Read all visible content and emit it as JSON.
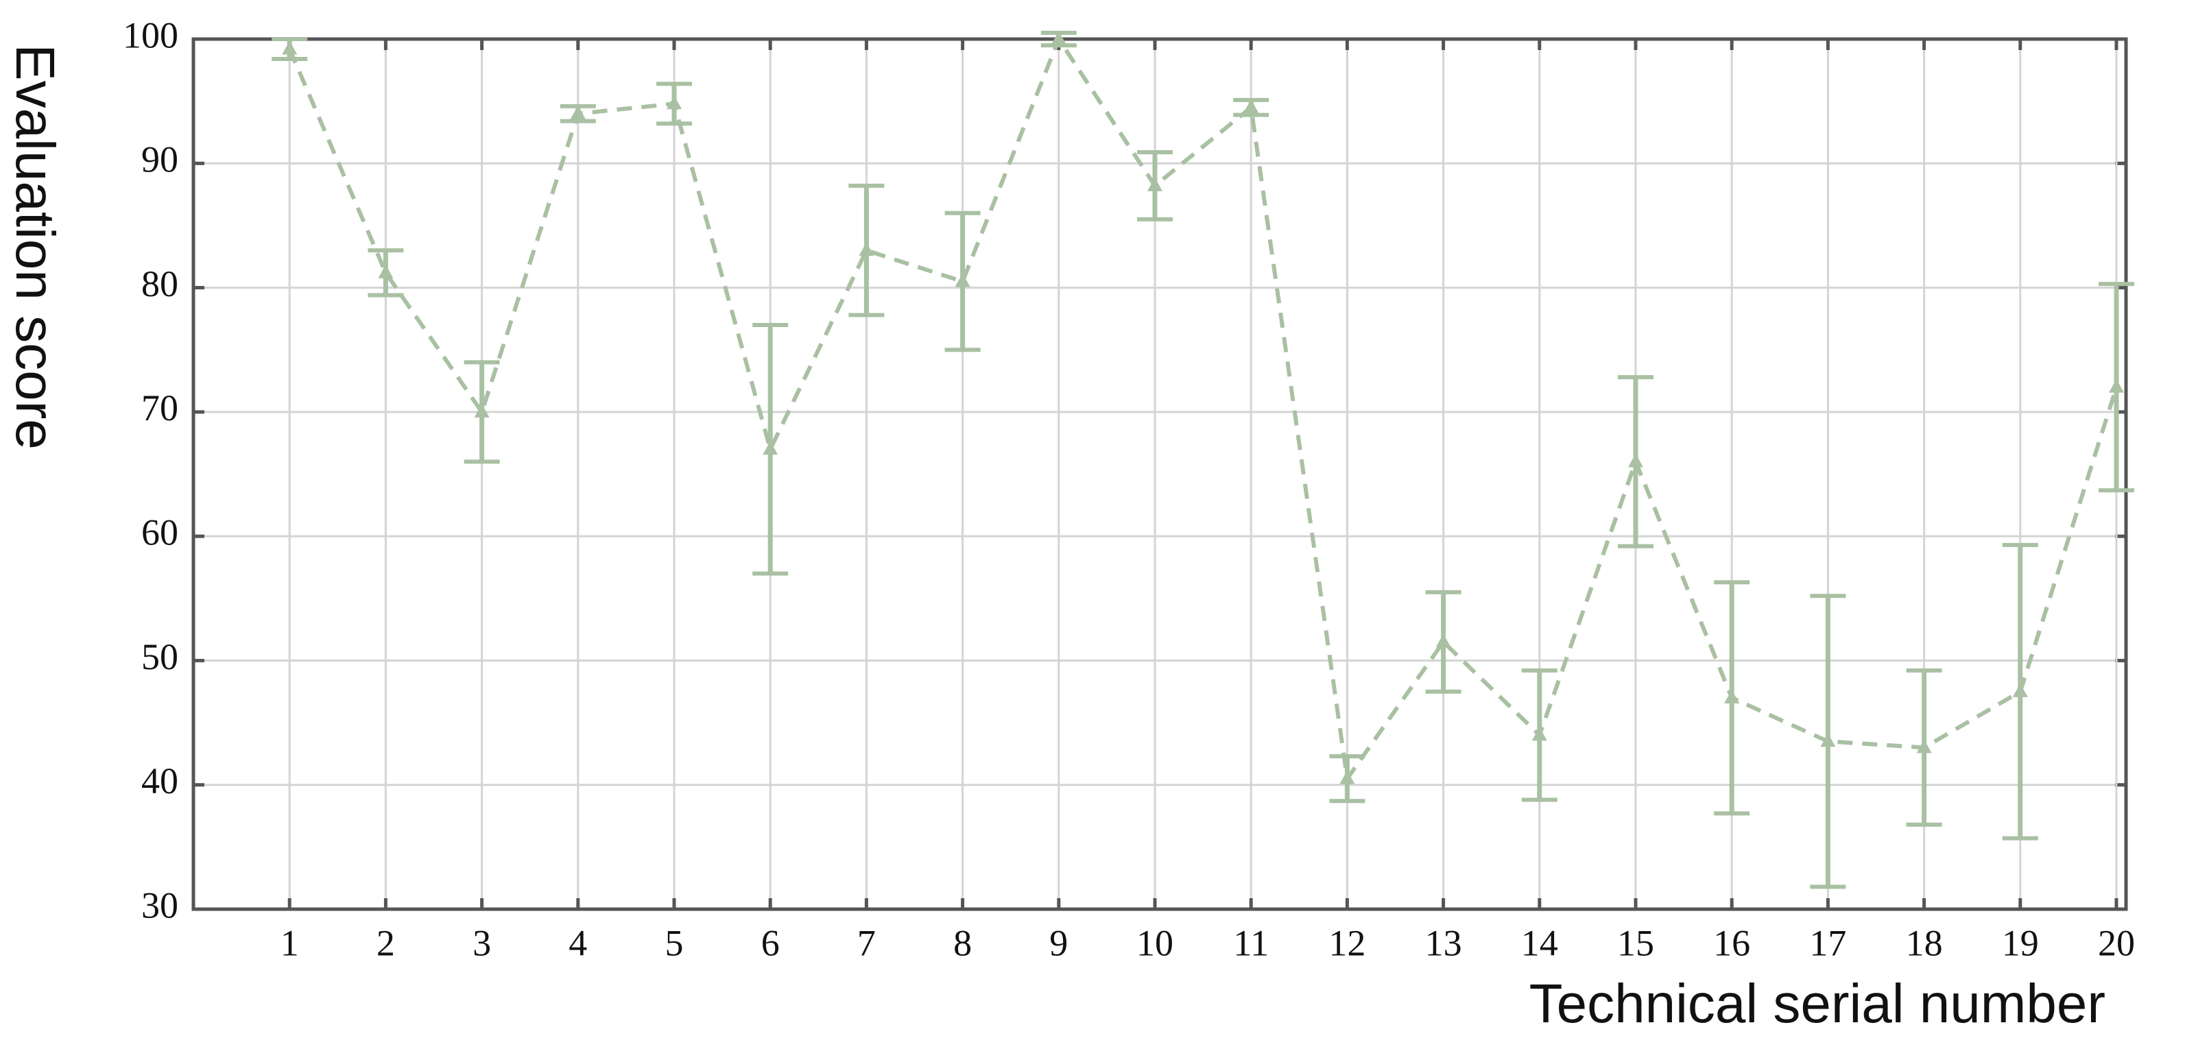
{
  "chart_data": {
    "type": "errorbar-line",
    "xlabel": "Technical serial number",
    "ylabel": "Evaluation score",
    "x": [
      1,
      2,
      3,
      4,
      5,
      6,
      7,
      8,
      9,
      10,
      11,
      12,
      13,
      14,
      15,
      16,
      17,
      18,
      19,
      20
    ],
    "values": [
      99.2,
      81.2,
      70,
      94,
      94.8,
      67,
      83,
      80.5,
      100,
      88.2,
      94.5,
      40.5,
      51.5,
      44,
      66,
      47,
      43.5,
      43,
      47.5,
      72
    ],
    "errors": [
      0.8,
      1.8,
      4,
      0.6,
      1.6,
      10,
      5.2,
      5.5,
      0.5,
      2.7,
      0.6,
      1.8,
      4,
      5.2,
      6.8,
      9.3,
      11.7,
      6.2,
      11.8,
      8.3
    ],
    "color": "#a9c0a3",
    "xlim": [
      0,
      20.1
    ],
    "xticks": [
      1,
      2,
      3,
      4,
      5,
      6,
      7,
      8,
      9,
      10,
      11,
      12,
      13,
      14,
      15,
      16,
      17,
      18,
      19,
      20
    ],
    "ylim": [
      30,
      100
    ],
    "yticks": [
      30,
      40,
      50,
      60,
      70,
      80,
      90,
      100
    ],
    "grid": true
  }
}
